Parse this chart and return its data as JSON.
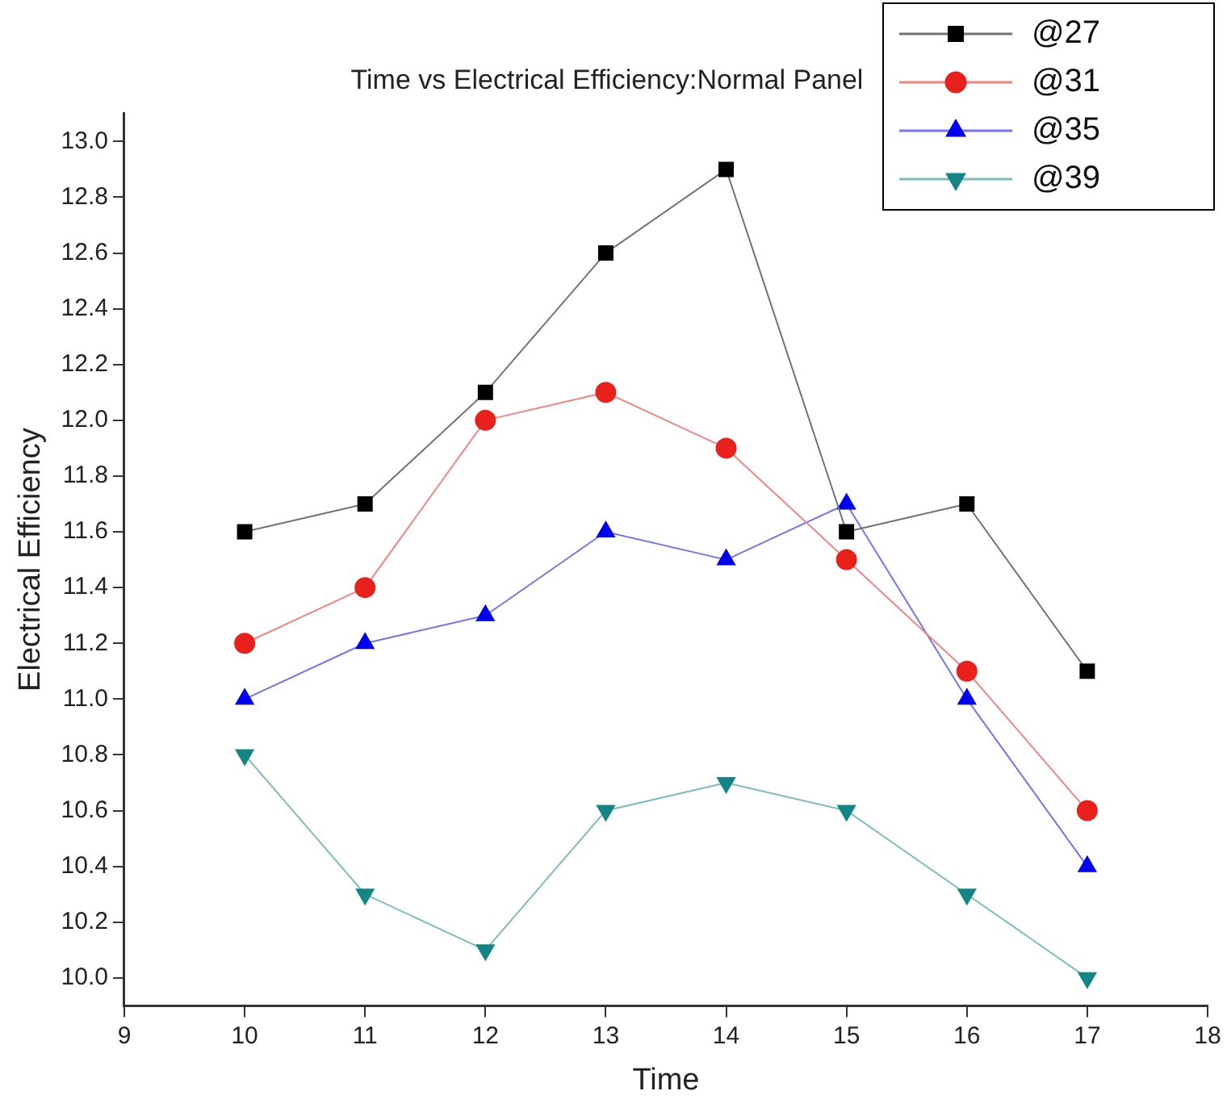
{
  "chart_data": {
    "type": "line",
    "title": "Time vs Electrical Efficiency:Normal Panel",
    "xlabel": "Time",
    "ylabel": "Electrical Efficiency",
    "x": [
      10,
      11,
      12,
      13,
      14,
      15,
      16,
      17
    ],
    "series": [
      {
        "name": "@27",
        "color": "#000000",
        "marker": "square",
        "values": [
          11.6,
          11.7,
          12.1,
          12.6,
          12.9,
          11.6,
          11.7,
          11.1
        ]
      },
      {
        "name": "@31",
        "color": "#e8211c",
        "marker": "circle",
        "values": [
          11.2,
          11.4,
          12.0,
          12.1,
          11.9,
          11.5,
          11.1,
          10.6
        ]
      },
      {
        "name": "@35",
        "color": "#0000f0",
        "marker": "triangle",
        "values": [
          11.0,
          11.2,
          11.3,
          11.6,
          11.5,
          11.7,
          11.0,
          10.4
        ]
      },
      {
        "name": "@39",
        "color": "#138585",
        "marker": "triangle-down",
        "values": [
          10.8,
          10.3,
          10.1,
          10.6,
          10.7,
          10.6,
          10.3,
          10.0
        ]
      }
    ],
    "xlim": [
      9,
      18
    ],
    "xticks": [
      9,
      10,
      11,
      12,
      13,
      14,
      15,
      16,
      17,
      18
    ],
    "ylim": [
      9.9,
      13.1
    ],
    "yticks": [
      {
        "value": 10,
        "label": "10.0"
      },
      {
        "value": 10.2,
        "label": "10.2"
      },
      {
        "value": 10.4,
        "label": "10.4"
      },
      {
        "value": 10.6,
        "label": "10.6"
      },
      {
        "value": 10.8,
        "label": "10.8"
      },
      {
        "value": 11,
        "label": "11.0"
      },
      {
        "value": 11.2,
        "label": "11.2"
      },
      {
        "value": 11.4,
        "label": "11.4"
      },
      {
        "value": 11.6,
        "label": "11.6"
      },
      {
        "value": 11.8,
        "label": "11.8"
      },
      {
        "value": 12,
        "label": "12.0"
      },
      {
        "value": 12.2,
        "label": "12.2"
      },
      {
        "value": 12.4,
        "label": "12.4"
      },
      {
        "value": 12.6,
        "label": "12.6"
      },
      {
        "value": 12.8,
        "label": "12.8"
      },
      {
        "value": 13,
        "label": "13.0"
      }
    ],
    "grid": false,
    "legend": "top right",
    "line_style": "solid"
  }
}
